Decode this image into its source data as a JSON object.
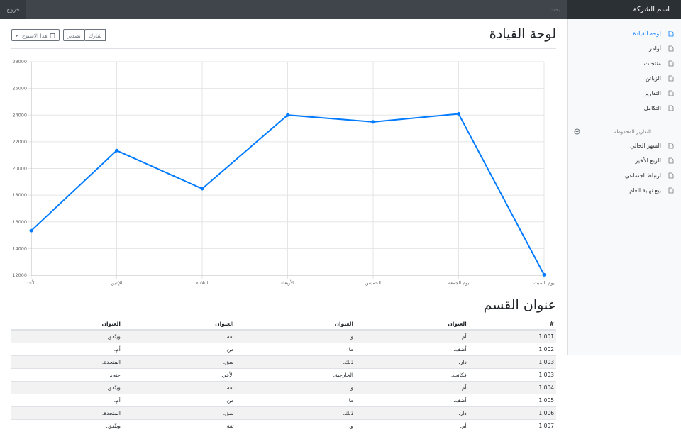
{
  "navbar": {
    "brand": "اسم الشركة",
    "search": "بحث",
    "signout": "خروج"
  },
  "sidebar": {
    "items": [
      "لوحة القيادة",
      "أوامر",
      "منتجات",
      "الزبائن",
      "التقارير",
      "التكامل"
    ],
    "saved_heading": "التقارير المحفوظة",
    "saved": [
      "الشهر الحالي",
      "الربع الأخير",
      "ارتباط اجتماعي",
      "بيع نهاية العام"
    ]
  },
  "header": {
    "title": "لوحة القيادة",
    "share": "شارك",
    "export": "تصدير",
    "period": "هذا الاسبوع"
  },
  "chart_data": {
    "type": "line",
    "color": "#007bff",
    "grid": true,
    "categories": [
      "الأحد",
      "الإثنين",
      "الثلاثاء",
      "الأربعاء",
      "الخميس",
      "يوم الجمعة",
      "يوم السبت"
    ],
    "values": [
      15339,
      21345,
      18483,
      24003,
      23489,
      24092,
      12034
    ],
    "ylim": [
      12000,
      28000
    ],
    "yticks": [
      12000,
      14000,
      16000,
      18000,
      20000,
      22000,
      24000,
      26000,
      28000
    ]
  },
  "section": {
    "title": "عنوان القسم"
  },
  "table": {
    "headers": [
      "#",
      "العنوان",
      "العنوان",
      "العنوان",
      "العنوان"
    ],
    "rows": [
      [
        "1,001",
        "أم.",
        "و.",
        "ثقة.",
        "ويتّفق."
      ],
      [
        "1,002",
        "أضف.",
        "ما.",
        "من.",
        "أم."
      ],
      [
        "1,003",
        "دار.",
        "ذلك.",
        "سق.",
        "المتحدة."
      ],
      [
        "1,003",
        "فكانت.",
        "الخارجية.",
        "الأخر.",
        "حتى."
      ],
      [
        "1,004",
        "أم.",
        "و.",
        "ثقة.",
        "ويتّفق."
      ],
      [
        "1,005",
        "أضف.",
        "ما.",
        "من.",
        "أم."
      ],
      [
        "1,006",
        "دار.",
        "ذلك.",
        "سق.",
        "المتحدة."
      ],
      [
        "1,007",
        "أم.",
        "و.",
        "ثقة.",
        "ويتّفق."
      ]
    ]
  }
}
